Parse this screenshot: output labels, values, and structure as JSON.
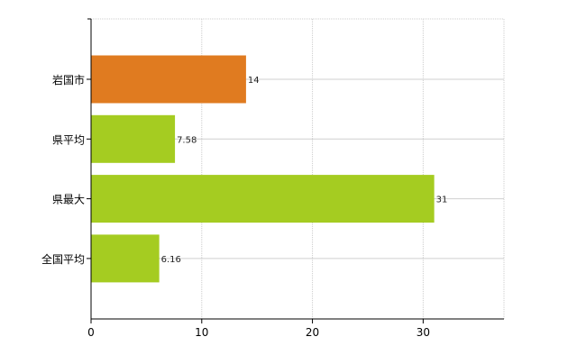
{
  "chart_data": {
    "type": "bar",
    "orientation": "horizontal",
    "categories": [
      "岩国市",
      "県平均",
      "県最大",
      "全国平均"
    ],
    "values": [
      14,
      7.58,
      31,
      6.16
    ],
    "value_labels": [
      "14",
      "7.58",
      "31",
      "6.16"
    ],
    "colors": [
      "#e07b20",
      "#a5cc21",
      "#a5cc21",
      "#a5cc21"
    ],
    "title": "",
    "xlabel": "",
    "ylabel": "",
    "xlim": [
      0,
      37.3
    ],
    "xticks": [
      0,
      10,
      20,
      30
    ],
    "xtick_labels": [
      "0",
      "10",
      "20",
      "30"
    ],
    "grid": true,
    "legend": "none"
  }
}
